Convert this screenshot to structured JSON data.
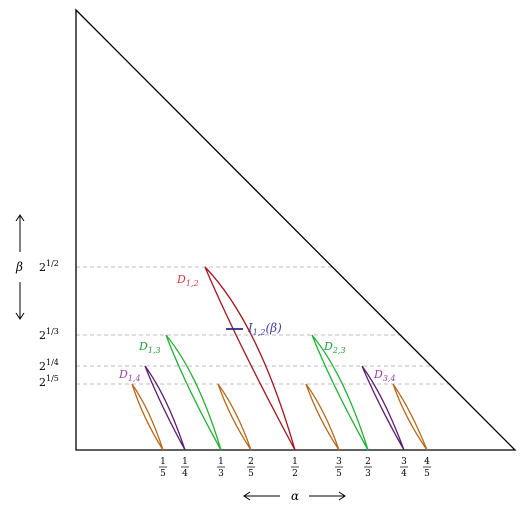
{
  "colors": {
    "triangle": "#000000",
    "guide": "#aaaaaa",
    "red": "#a3151c",
    "green": "#22b035",
    "purple": "#5b1d6e",
    "orange": "#b86a1c",
    "label_red": "#d23b3b",
    "label_green": "#22a035",
    "label_purple": "#9a3fa8",
    "label_blue": "#4040a0",
    "interval": "#2a2a8a"
  },
  "labels": {
    "d12": {
      "base": "D",
      "sub": "1,2"
    },
    "d13": {
      "base": "D",
      "sub": "1,3"
    },
    "d14": {
      "base": "D",
      "sub": "1,4"
    },
    "d23": {
      "base": "D",
      "sub": "2,3"
    },
    "d34": {
      "base": "D",
      "sub": "3,4"
    },
    "i12": {
      "base": "I",
      "sub": "1,2",
      "arg": "(β)"
    }
  },
  "axes": {
    "beta": "β",
    "alpha": "α"
  },
  "y_ticks": [
    {
      "base": "2",
      "exp": "1/2"
    },
    {
      "base": "2",
      "exp": "1/3"
    },
    {
      "base": "2",
      "exp": "1/4"
    },
    {
      "base": "2",
      "exp": "1/5"
    }
  ],
  "x_ticks": [
    {
      "num": "1",
      "den": "5"
    },
    {
      "num": "1",
      "den": "4"
    },
    {
      "num": "1",
      "den": "3"
    },
    {
      "num": "2",
      "den": "5"
    },
    {
      "num": "1",
      "den": "2"
    },
    {
      "num": "3",
      "den": "5"
    },
    {
      "num": "2",
      "den": "3"
    },
    {
      "num": "3",
      "den": "4"
    },
    {
      "num": "4",
      "den": "5"
    }
  ]
}
